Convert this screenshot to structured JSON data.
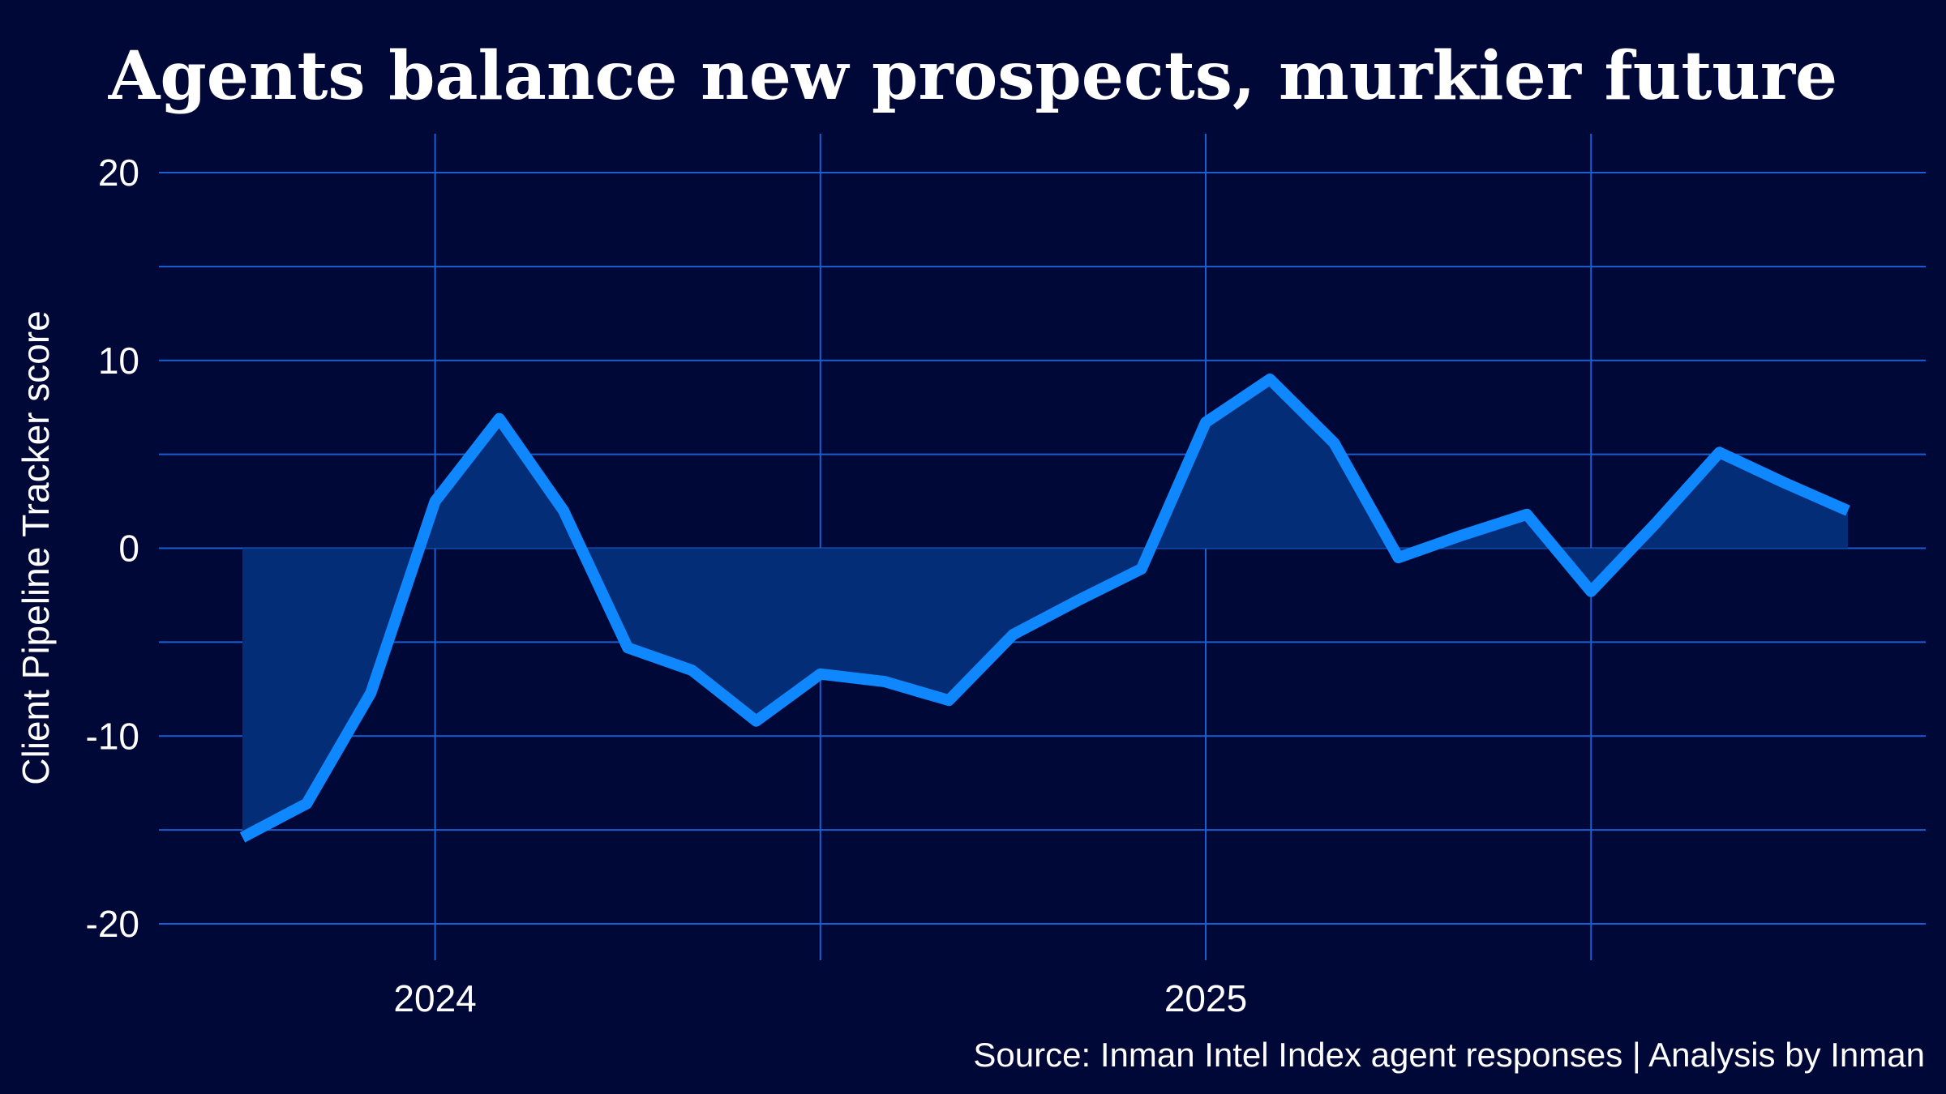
{
  "chart_data": {
    "type": "area",
    "title": "Agents balance new prospects, murkier future",
    "xlabel": "",
    "ylabel": "Client Pipeline Tracker score",
    "source": "Source: Inman Intel Index agent responses | Analysis by Inman",
    "ylim": [
      -22,
      22
    ],
    "yticks": [
      -20,
      -10,
      0,
      10,
      20
    ],
    "ytick_labels": [
      "-20",
      "-10",
      "0",
      "10",
      "20"
    ],
    "xticks": [
      {
        "label": "2024",
        "month_index": 3
      },
      {
        "label": "2025",
        "month_index": 15
      }
    ],
    "grid": true,
    "x": [
      "2023-10",
      "2023-11",
      "2023-12",
      "2024-01",
      "2024-02",
      "2024-03",
      "2024-04",
      "2024-05",
      "2024-06",
      "2024-07",
      "2024-08",
      "2024-09",
      "2024-10",
      "2024-11",
      "2024-12",
      "2025-01",
      "2025-02",
      "2025-03",
      "2025-04",
      "2025-05",
      "2025-06",
      "2025-07",
      "2025-08",
      "2025-09",
      "2025-10",
      "2025-11"
    ],
    "values": [
      -15.4,
      -13.6,
      -7.7,
      2.5,
      6.9,
      2.0,
      -5.3,
      -6.5,
      -9.2,
      -6.7,
      -7.1,
      -8.1,
      -4.6,
      -2.8,
      -1.1,
      6.7,
      9.0,
      5.6,
      -0.5,
      0.7,
      1.8,
      -2.3,
      1.3,
      5.1,
      3.5,
      2.0
    ],
    "colors": {
      "background": "#000838",
      "line": "#0f87ff",
      "fill": "#042d77",
      "grid": "#1a5fd0"
    }
  }
}
